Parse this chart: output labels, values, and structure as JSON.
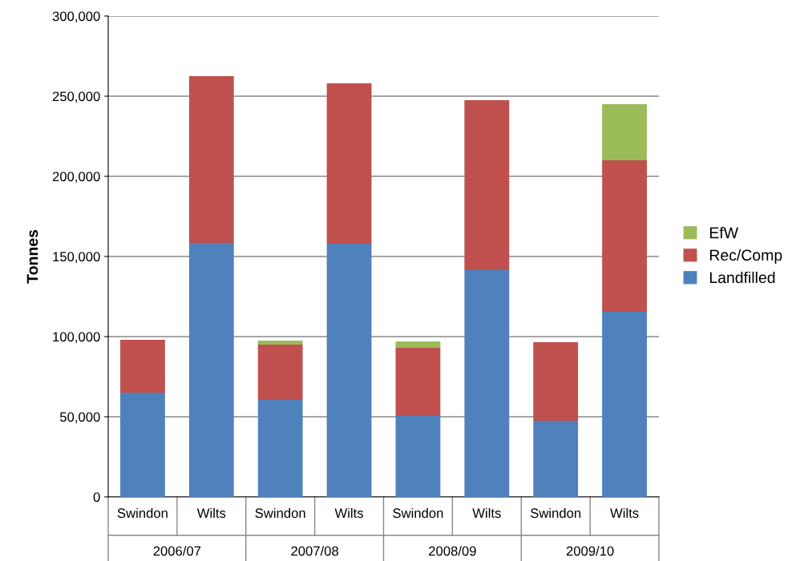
{
  "chart_data": {
    "type": "bar",
    "stacked": true,
    "ylabel": "Tonnes",
    "categories": [
      "Swindon",
      "Wilts",
      "Swindon",
      "Wilts",
      "Swindon",
      "Wilts",
      "Swindon",
      "Wilts"
    ],
    "annotations": [
      "2006/07",
      "2007/08",
      "2008/09",
      "2009/10"
    ],
    "series": [
      {
        "name": "Landfilled",
        "color": "#4f81bd",
        "values": [
          65000,
          158500,
          60500,
          158000,
          50500,
          141500,
          47500,
          115500
        ]
      },
      {
        "name": "Rec/Comp",
        "color": "#c0504d",
        "values": [
          33000,
          104000,
          34500,
          100000,
          42500,
          106000,
          49000,
          94500
        ]
      },
      {
        "name": "EfW",
        "color": "#9bbb59",
        "values": [
          null,
          null,
          2500,
          null,
          4000,
          null,
          null,
          35000
        ]
      }
    ],
    "ylim": [
      0,
      300000
    ],
    "yticks": [
      {
        "value": 0,
        "label": "0"
      },
      {
        "value": 50000,
        "label": "50,000"
      },
      {
        "value": 100000,
        "label": "100,000"
      },
      {
        "value": 150000,
        "label": "150,000"
      },
      {
        "value": 200000,
        "label": "200,000"
      },
      {
        "value": 250000,
        "label": "250,000"
      },
      {
        "value": 300000,
        "label": "300,000"
      }
    ],
    "grid": "y",
    "legend": "right"
  }
}
